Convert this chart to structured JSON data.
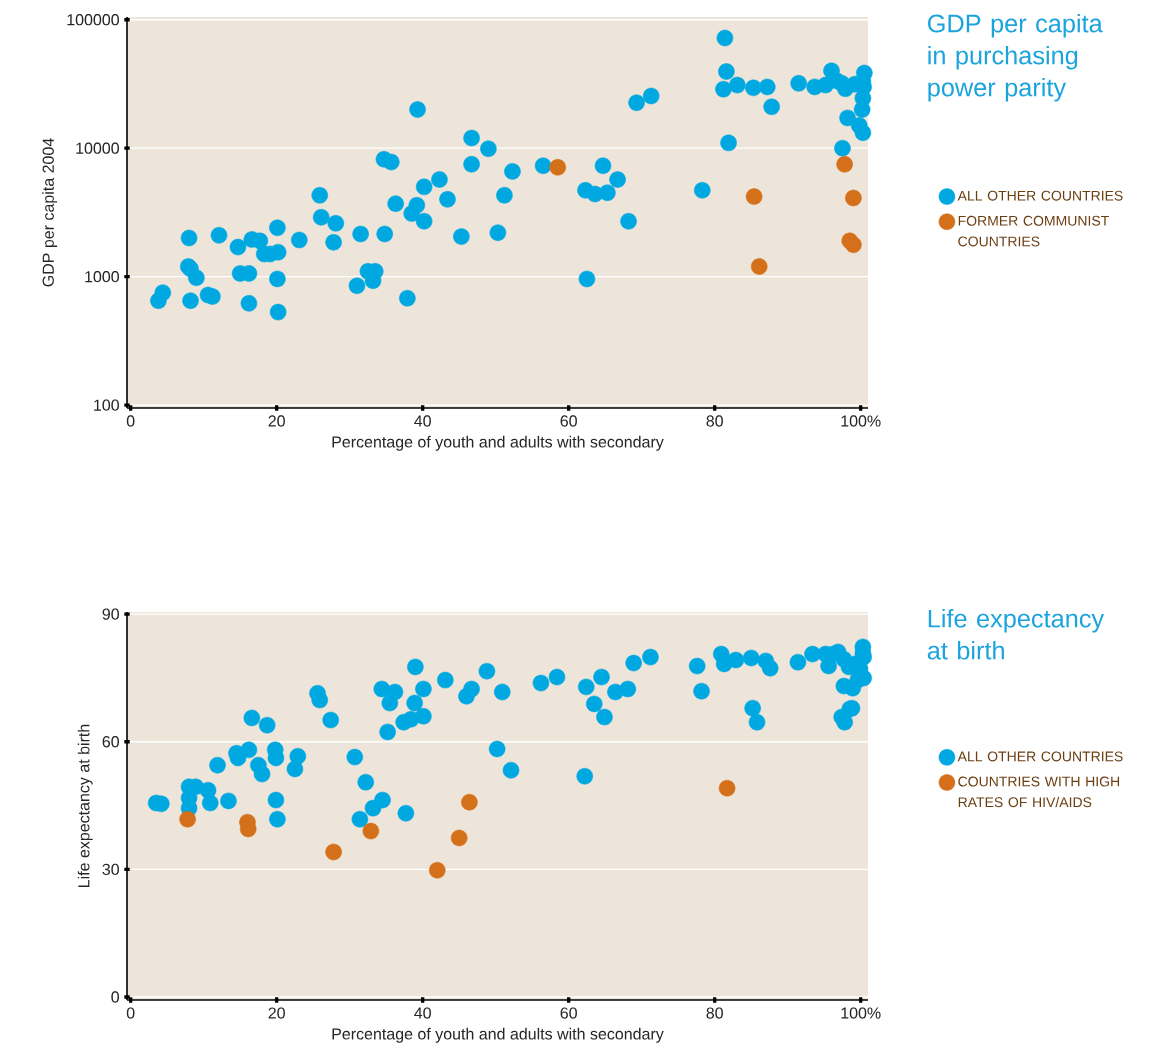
{
  "chart_data": [
    {
      "type": "scatter",
      "annotations": [
        "GDP per capita in purchasing power parity"
      ],
      "xlabel": "Percentage of youth and adults with secondary",
      "ylabel": "GDP per capita 2004",
      "xlim": [
        -0.5,
        101
      ],
      "ylim": [
        95,
        105000
      ],
      "log": "y",
      "grid": "y",
      "legend": "right",
      "marker": "circle",
      "xticks": [
        0,
        20,
        40,
        60,
        80,
        {
          "value": 100,
          "label": "100%"
        }
      ],
      "yticks": [
        100,
        1000,
        10000,
        100000
      ],
      "series": [
        {
          "name": "ALL OTHER COUNTRIES",
          "color": "#00a8e1",
          "x": [
            3.8,
            4.4,
            8.0,
            7.9,
            8.2,
            9.0,
            8.2,
            10.6,
            11.2,
            12.1,
            14.7,
            15.0,
            16.2,
            16.2,
            16.6,
            17.7,
            18.3,
            19.1,
            20.1,
            20.2,
            20.1,
            20.2,
            23.1,
            25.9,
            26.1,
            28.1,
            27.8,
            31.0,
            31.5,
            32.5,
            33.2,
            33.5,
            34.7,
            35.7,
            34.8,
            36.3,
            37.9,
            38.5,
            39.2,
            39.3,
            40.2,
            40.2,
            42.3,
            43.4,
            45.3,
            46.7,
            46.7,
            49.0,
            50.3,
            51.2,
            52.3,
            56.5,
            62.3,
            62.5,
            63.6,
            64.7,
            65.3,
            66.7,
            68.2,
            69.3,
            71.3,
            78.3,
            81.2,
            81.4,
            81.6,
            81.9,
            83.1,
            85.3,
            87.2,
            87.8,
            91.5,
            93.7,
            95.2,
            96.0,
            96.7,
            97.4,
            97.9,
            98.2,
            97.5,
            99.2,
            100.5,
            100.3,
            100.4,
            100.3,
            100.2,
            99.8,
            100.3
          ],
          "values": [
            650,
            750,
            2000,
            1200,
            1150,
            980,
            650,
            720,
            700,
            2100,
            1700,
            1060,
            1060,
            620,
            1950,
            1900,
            1500,
            1500,
            2400,
            1550,
            960,
            530,
            1930,
            4300,
            2900,
            2600,
            1850,
            850,
            2150,
            1100,
            930,
            1100,
            8200,
            7800,
            2150,
            3700,
            680,
            3100,
            3600,
            20000,
            5000,
            2700,
            5700,
            4000,
            2050,
            12000,
            7500,
            9900,
            2200,
            4300,
            6600,
            7300,
            4700,
            960,
            4400,
            7300,
            4500,
            5700,
            2700,
            22600,
            25500,
            4700,
            28800,
            72000,
            39500,
            11000,
            31000,
            29500,
            30000,
            21000,
            32000,
            30000,
            31000,
            40000,
            33500,
            32000,
            29000,
            17200,
            10000,
            31500,
            38500,
            33000,
            30000,
            24500,
            20000,
            15000,
            13200
          ]
        },
        {
          "name": "FORMER COMMUNIST COUNTRIES",
          "color": "#d46f1a",
          "x": [
            58.5,
            85.4,
            86.1,
            97.8,
            99.0,
            98.5,
            99.0
          ],
          "values": [
            7100,
            4200,
            1200,
            7500,
            4100,
            1900,
            1770
          ]
        }
      ]
    },
    {
      "type": "scatter",
      "annotations": [
        "Life expectancy at birth"
      ],
      "xlabel": "Percentage of youth and adults with secondary",
      "ylabel": "Life expectancy at birth",
      "xlim": [
        -0.5,
        101
      ],
      "ylim": [
        -0.7,
        90.5
      ],
      "grid": "y",
      "legend": "right",
      "marker": "circle",
      "xticks": [
        0,
        20,
        40,
        60,
        80,
        {
          "value": 100,
          "label": "100%"
        }
      ],
      "yticks": [
        0,
        30,
        60,
        90
      ],
      "series": [
        {
          "name": "ALL OTHER COUNTRIES",
          "color": "#00a8e1",
          "x": [
            3.5,
            4.2,
            8.0,
            8.0,
            8.0,
            8.9,
            10.6,
            10.9,
            11.9,
            13.4,
            14.5,
            14.7,
            16.2,
            16.6,
            17.5,
            18.0,
            18.7,
            19.8,
            19.9,
            19.9,
            20.1,
            22.5,
            22.9,
            25.6,
            25.9,
            27.4,
            30.7,
            31.4,
            32.2,
            33.2,
            34.4,
            34.5,
            35.2,
            35.5,
            36.2,
            37.4,
            37.7,
            38.4,
            39.0,
            38.9,
            40.1,
            40.1,
            43.1,
            46.0,
            46.7,
            48.8,
            50.2,
            50.9,
            52.1,
            56.2,
            58.4,
            62.2,
            62.4,
            63.5,
            64.5,
            64.9,
            66.4,
            68.1,
            68.9,
            71.2,
            77.6,
            78.2,
            80.9,
            81.3,
            82.9,
            85.0,
            85.2,
            85.8,
            87.0,
            87.6,
            91.4,
            93.4,
            95.2,
            95.6,
            96.2,
            96.9,
            97.7,
            97.7,
            97.4,
            97.8,
            98.4,
            98.5,
            98.8,
            98.9,
            99.2,
            99.6,
            99.9,
            100.3,
            100.4,
            100.4,
            100.3
          ],
          "values": [
            45.6,
            45.4,
            49.4,
            46.8,
            44.4,
            49.4,
            48.6,
            45.6,
            54.5,
            46.1,
            57.3,
            56.2,
            58.1,
            65.6,
            54.5,
            52.4,
            63.9,
            58.1,
            56.2,
            46.3,
            41.8,
            53.6,
            56.6,
            71.4,
            69.8,
            65.1,
            56.4,
            41.8,
            50.5,
            44.4,
            72.4,
            46.3,
            62.3,
            69.1,
            71.7,
            64.6,
            43.2,
            65.3,
            77.6,
            69.1,
            66.0,
            72.4,
            74.5,
            70.7,
            72.4,
            76.6,
            58.3,
            71.7,
            53.3,
            73.8,
            75.2,
            51.9,
            72.9,
            68.9,
            75.2,
            65.8,
            71.7,
            72.4,
            78.5,
            79.9,
            77.8,
            71.9,
            80.6,
            78.3,
            79.2,
            79.7,
            67.9,
            64.6,
            79.0,
            77.3,
            78.7,
            80.6,
            80.6,
            77.8,
            80.6,
            81.1,
            73.1,
            79.4,
            65.8,
            64.6,
            77.6,
            67.7,
            67.9,
            72.6,
            78.3,
            74.5,
            77.1,
            82.3,
            79.9,
            75.0,
            80.8
          ]
        },
        {
          "name": "COUNTRIES WITH HIGH RATES OF HIV/AIDS",
          "color": "#d46f1a",
          "x": [
            7.8,
            16.0,
            16.1,
            27.8,
            32.9,
            42.0,
            45.0,
            46.4,
            81.7
          ],
          "values": [
            41.8,
            41.1,
            39.5,
            34.1,
            39.0,
            29.8,
            37.4,
            45.8,
            49.1
          ]
        }
      ]
    }
  ]
}
